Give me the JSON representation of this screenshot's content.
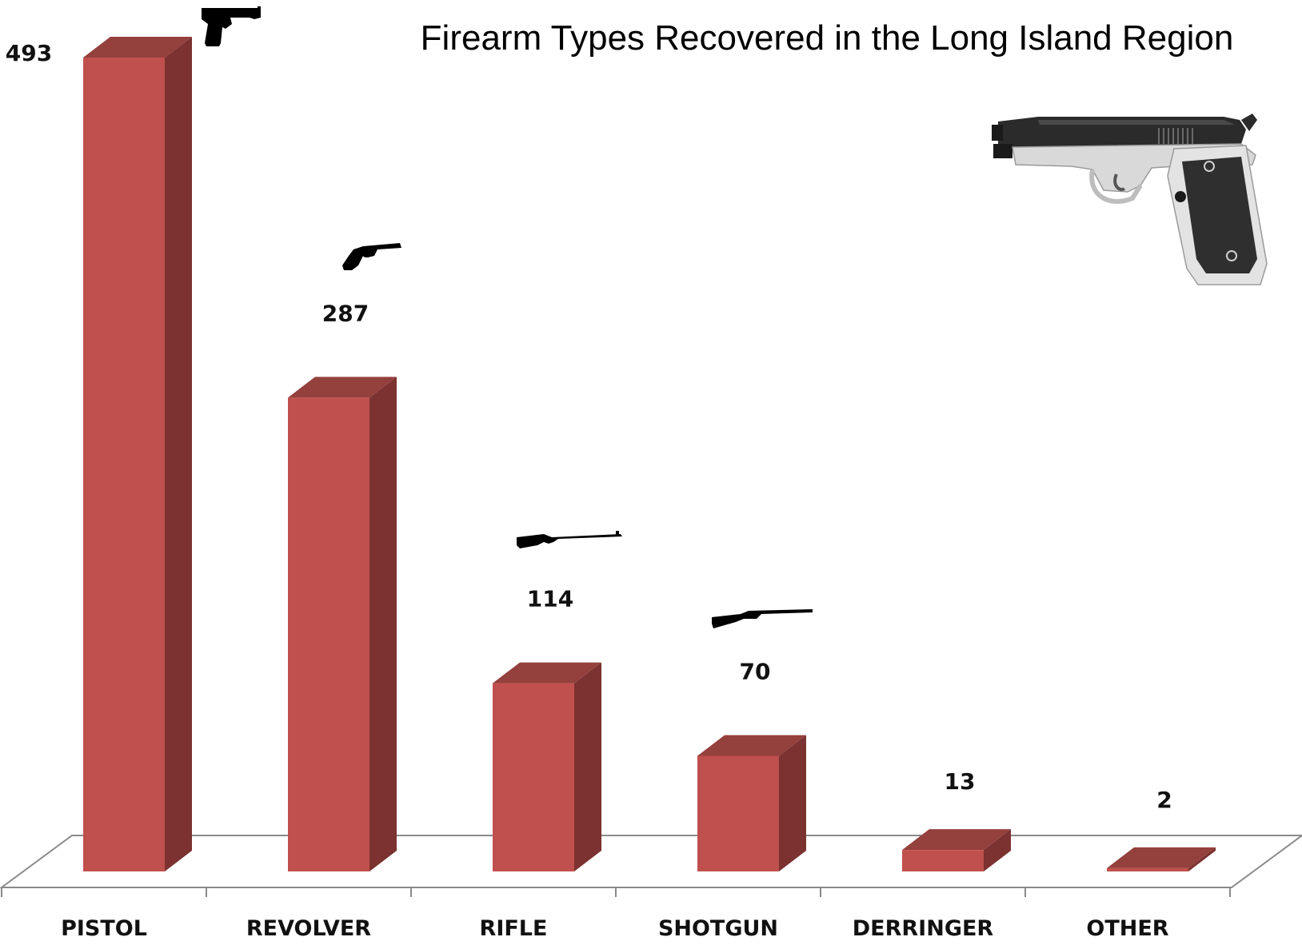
{
  "chart_data": {
    "type": "bar",
    "title": "Firearm Types Recovered in the Long Island Region",
    "categories": [
      "PISTOL",
      "REVOLVER",
      "RIFLE",
      "SHOTGUN",
      "DERRINGER",
      "OTHER"
    ],
    "values": [
      493,
      287,
      114,
      70,
      13,
      2
    ],
    "xlabel": "",
    "ylabel": "",
    "ylim": [
      0,
      493
    ],
    "grid": false,
    "legend": "none",
    "style": "3d-column",
    "colors": {
      "bar_front": "#c0504d",
      "bar_side": "#7b3230",
      "bar_top": "#94403d",
      "floor": "#888888"
    },
    "icons": [
      "pistol-icon",
      "revolver-icon",
      "rifle-icon",
      "shotgun-icon",
      "",
      "",
      "semi-automatic-pistol-illustration"
    ]
  }
}
